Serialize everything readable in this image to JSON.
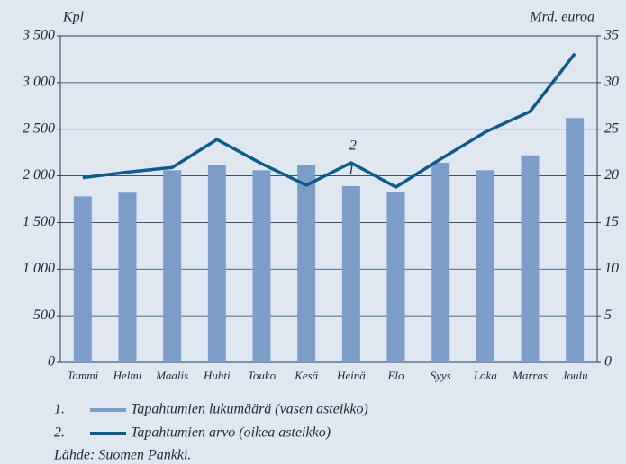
{
  "chart_data": {
    "type": "bar_line",
    "ylabel": "Kpl",
    "y2label": "Mrd. euroa",
    "categories": [
      "Tammi",
      "Helmi",
      "Maalis",
      "Huhti",
      "Touko",
      "Kesä",
      "Heinä",
      "Elo",
      "Syys",
      "Loka",
      "Marras",
      "Joulu"
    ],
    "series": [
      {
        "name": "Tapahtumien lukumäärä (vasen asteikko)",
        "legend_label": "1.",
        "annotation": "1",
        "type": "bar",
        "color": "#7b9dc7",
        "values": [
          1780,
          1820,
          2060,
          2120,
          2060,
          2120,
          1890,
          1830,
          2140,
          2060,
          2220,
          2620
        ]
      },
      {
        "name": "Tapahtumien arvo (oikea asteikko)",
        "legend_label": "2.",
        "annotation": "2",
        "type": "line",
        "axis": "y2",
        "color": "#0e5b8c",
        "values": [
          19.8,
          20.4,
          20.9,
          23.9,
          21.3,
          19.0,
          21.4,
          18.8,
          21.8,
          24.7,
          26.9,
          33.1
        ]
      }
    ],
    "ylim": [
      0,
      3500
    ],
    "yticks": [
      0,
      500,
      {
        "value": 1000,
        "label": "1 000"
      },
      {
        "value": 1500,
        "label": "1 500"
      },
      {
        "value": 2000,
        "label": "2 000"
      },
      {
        "value": 2500,
        "label": "2 500"
      },
      {
        "value": 3000,
        "label": "3 000"
      },
      {
        "value": 3500,
        "label": "3 500"
      }
    ],
    "y2lim": [
      0,
      35
    ],
    "y2ticks": [
      0,
      5,
      10,
      15,
      20,
      25,
      30,
      35
    ],
    "grid": true,
    "source": "Lähde: Suomen Pankki."
  }
}
